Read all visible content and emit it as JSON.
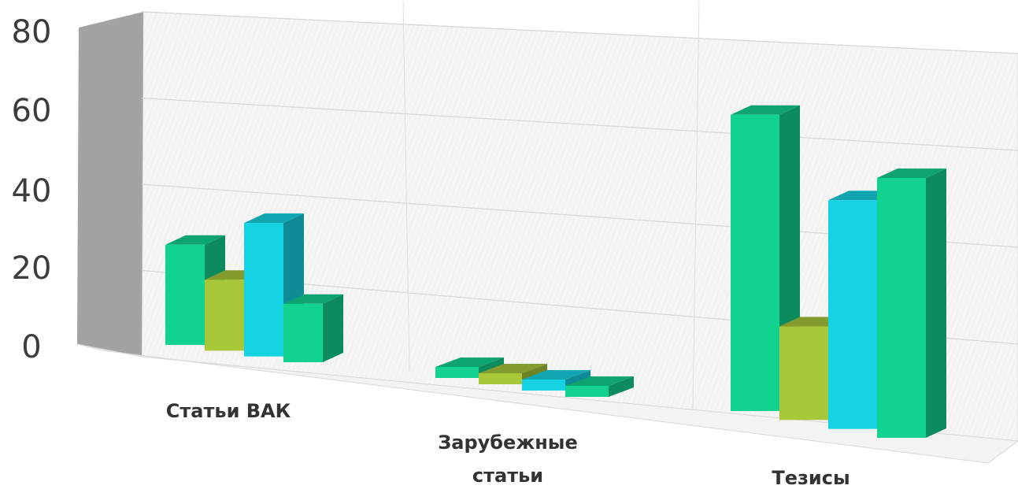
{
  "chart_data": {
    "type": "bar",
    "title": "",
    "categories": [
      "Статьи ВАК",
      "Зарубежные статьи",
      "Тезисы"
    ],
    "category_lines": [
      [
        "Статьи ВАК"
      ],
      [
        "Зарубежные",
        "статьи"
      ],
      [
        "Тезисы"
      ]
    ],
    "series": [
      {
        "values": [
          24,
          0,
          57
        ]
      },
      {
        "values": [
          17,
          0,
          18
        ]
      },
      {
        "values": [
          32,
          0,
          44
        ]
      },
      {
        "values": [
          14,
          0,
          50
        ]
      }
    ],
    "ylim": [
      0,
      80
    ],
    "yticks": [
      0,
      20,
      40,
      60,
      80
    ],
    "ytick_labels": [
      "0",
      "20",
      "40",
      "60",
      "80"
    ],
    "xlabel": "",
    "ylabel": "",
    "grid": true,
    "legend": "none",
    "colors": [
      "#12d28f",
      "#a9c73a",
      "#15d3e3",
      "#12d28f"
    ]
  }
}
